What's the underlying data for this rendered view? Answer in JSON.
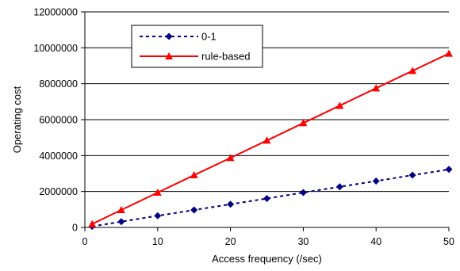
{
  "chart_data": {
    "type": "line",
    "title": "",
    "xlabel": "Access frequency (/sec)",
    "ylabel": "Operating cost",
    "xlim": [
      0,
      50
    ],
    "ylim": [
      0,
      12000000
    ],
    "xticks": [
      0,
      10,
      20,
      30,
      40,
      50
    ],
    "yticks": [
      0,
      2000000,
      4000000,
      6000000,
      8000000,
      10000000,
      12000000
    ],
    "xtick_labels": [
      "0",
      "10",
      "20",
      "30",
      "40",
      "50"
    ],
    "ytick_labels": [
      "0",
      "2000000",
      "4000000",
      "6000000",
      "8000000",
      "10000000",
      "12000000"
    ],
    "grid": "horizontal",
    "legend_position": "top-left",
    "series": [
      {
        "name": "0-1",
        "color": "#000080",
        "line_style": "dashed",
        "marker": "diamond",
        "x": [
          1,
          5,
          10,
          15,
          20,
          25,
          30,
          35,
          40,
          45,
          50
        ],
        "y": [
          60000,
          320000,
          650000,
          970000,
          1290000,
          1610000,
          1940000,
          2260000,
          2580000,
          2910000,
          3230000
        ]
      },
      {
        "name": "rule-based",
        "color": "#ff0000",
        "line_style": "solid",
        "marker": "triangle",
        "x": [
          1,
          5,
          10,
          15,
          20,
          25,
          30,
          35,
          40,
          45,
          50
        ],
        "y": [
          190000,
          970000,
          1940000,
          2910000,
          3870000,
          4840000,
          5810000,
          6780000,
          7750000,
          8720000,
          9680000
        ]
      }
    ]
  }
}
